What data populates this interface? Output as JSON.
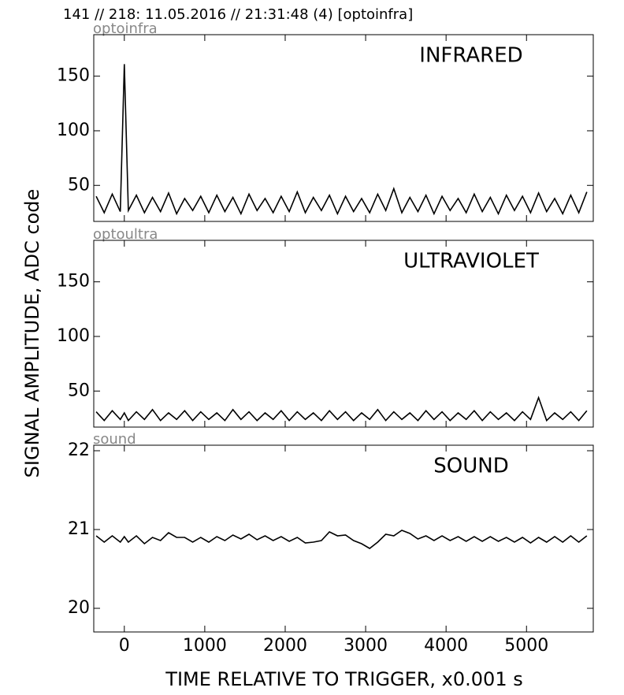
{
  "figure": {
    "title": "141 // 218:   11.05.2016 // 21:31:48 (4)  [optoinfra]",
    "xlabel": "TIME RELATIVE TO TRIGGER,   x0.001 s",
    "ylabel": "SIGNAL AMPLITUDE,  ADC code"
  },
  "chart_data": [
    {
      "type": "line",
      "title": "INFRARED",
      "x": [
        -350,
        -250,
        -150,
        -50,
        0,
        50,
        150,
        250,
        350,
        450,
        550,
        650,
        750,
        850,
        950,
        1050,
        1150,
        1250,
        1350,
        1450,
        1550,
        1650,
        1750,
        1850,
        1950,
        2050,
        2150,
        2250,
        2350,
        2450,
        2550,
        2650,
        2750,
        2850,
        2950,
        3050,
        3150,
        3250,
        3350,
        3450,
        3550,
        3650,
        3750,
        3850,
        3950,
        4050,
        4150,
        4250,
        4350,
        4450,
        4550,
        4650,
        4750,
        4850,
        4950,
        5050,
        5150,
        5250,
        5350,
        5450,
        5550,
        5650,
        5750
      ],
      "series": [
        {
          "name": "optoinfra",
          "color": "#000000",
          "values": [
            40,
            25,
            42,
            26,
            161,
            27,
            41,
            25,
            39,
            26,
            43,
            24,
            38,
            27,
            40,
            25,
            41,
            26,
            39,
            24,
            42,
            27,
            38,
            25,
            40,
            26,
            44,
            25,
            39,
            27,
            41,
            24,
            40,
            26,
            38,
            25,
            42,
            27,
            47,
            25,
            39,
            26,
            41,
            24,
            40,
            27,
            38,
            25,
            42,
            26,
            39,
            24,
            41,
            27,
            40,
            25,
            43,
            26,
            38,
            24,
            41,
            25,
            44
          ]
        }
      ],
      "xlim": [
        -380,
        5830
      ],
      "xticks": [
        0,
        1000,
        2000,
        3000,
        4000,
        5000
      ],
      "ylim": [
        17,
        188
      ],
      "yticks": [
        50,
        100,
        150
      ]
    },
    {
      "type": "line",
      "title": "ULTRAVIOLET",
      "x": [
        -350,
        -250,
        -150,
        -50,
        0,
        50,
        150,
        250,
        350,
        450,
        550,
        650,
        750,
        850,
        950,
        1050,
        1150,
        1250,
        1350,
        1450,
        1550,
        1650,
        1750,
        1850,
        1950,
        2050,
        2150,
        2250,
        2350,
        2450,
        2550,
        2650,
        2750,
        2850,
        2950,
        3050,
        3150,
        3250,
        3350,
        3450,
        3550,
        3650,
        3750,
        3850,
        3950,
        4050,
        4150,
        4250,
        4350,
        4450,
        4550,
        4650,
        4750,
        4850,
        4950,
        5050,
        5150,
        5250,
        5350,
        5450,
        5550,
        5650,
        5750
      ],
      "series": [
        {
          "name": "optoultra",
          "color": "#000000",
          "values": [
            31,
            23,
            32,
            24,
            30,
            23,
            31,
            24,
            33,
            23,
            30,
            24,
            32,
            23,
            31,
            24,
            30,
            23,
            33,
            24,
            31,
            23,
            30,
            24,
            32,
            23,
            31,
            24,
            30,
            23,
            32,
            24,
            31,
            23,
            30,
            24,
            33,
            23,
            31,
            24,
            30,
            23,
            32,
            24,
            31,
            23,
            30,
            24,
            32,
            23,
            31,
            24,
            30,
            23,
            31,
            24,
            44,
            23,
            30,
            24,
            31,
            23,
            32
          ]
        }
      ],
      "xlim": [
        -380,
        5830
      ],
      "xticks": [
        0,
        1000,
        2000,
        3000,
        4000,
        5000
      ],
      "ylim": [
        17,
        188
      ],
      "yticks": [
        50,
        100,
        150
      ]
    },
    {
      "type": "line",
      "title": "SOUND",
      "x": [
        -350,
        -250,
        -150,
        -50,
        0,
        50,
        150,
        250,
        350,
        450,
        550,
        650,
        750,
        850,
        950,
        1050,
        1150,
        1250,
        1350,
        1450,
        1550,
        1650,
        1750,
        1850,
        1950,
        2050,
        2150,
        2250,
        2350,
        2450,
        2550,
        2650,
        2750,
        2850,
        2950,
        3050,
        3150,
        3250,
        3350,
        3450,
        3550,
        3650,
        3750,
        3850,
        3950,
        4050,
        4150,
        4250,
        4350,
        4450,
        4550,
        4650,
        4750,
        4850,
        4950,
        5050,
        5150,
        5250,
        5350,
        5450,
        5550,
        5650,
        5750
      ],
      "series": [
        {
          "name": "sound",
          "color": "#000000",
          "values": [
            20.92,
            20.84,
            20.92,
            20.84,
            20.91,
            20.84,
            20.92,
            20.82,
            20.9,
            20.86,
            20.96,
            20.9,
            20.9,
            20.84,
            20.9,
            20.84,
            20.91,
            20.86,
            20.93,
            20.88,
            20.94,
            20.87,
            20.92,
            20.86,
            20.91,
            20.85,
            20.9,
            20.83,
            20.84,
            20.86,
            20.97,
            20.92,
            20.93,
            20.86,
            20.82,
            20.76,
            20.84,
            20.94,
            20.92,
            20.99,
            20.95,
            20.88,
            20.92,
            20.86,
            20.92,
            20.86,
            20.91,
            20.85,
            20.91,
            20.85,
            20.91,
            20.85,
            20.9,
            20.84,
            20.9,
            20.83,
            20.9,
            20.84,
            20.91,
            20.84,
            20.92,
            20.84,
            20.92
          ]
        }
      ],
      "xlim": [
        -380,
        5830
      ],
      "xticks": [
        0,
        1000,
        2000,
        3000,
        4000,
        5000
      ],
      "ylim": [
        19.7,
        22.07
      ],
      "yticks": [
        20,
        21,
        22
      ]
    }
  ]
}
